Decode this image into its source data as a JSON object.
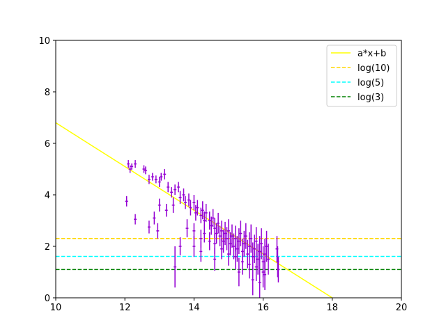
{
  "chart_data": {
    "type": "scatter",
    "title": "",
    "xlabel": "",
    "ylabel": "",
    "xlim": [
      10,
      20
    ],
    "ylim": [
      0,
      10
    ],
    "xticks": [
      "10",
      "12",
      "14",
      "16",
      "18",
      "20"
    ],
    "yticks": [
      "0",
      "2",
      "4",
      "6",
      "8",
      "10"
    ],
    "grid": false,
    "legend_position": "top-right",
    "fit_line": {
      "label": "a*x+b",
      "slope": -0.85,
      "intercept": 15.3,
      "x_range": [
        10,
        18.0
      ],
      "color": "#ffff00"
    },
    "hlines": [
      {
        "label": "log(10)",
        "y": 2.303,
        "color": "#ffd700"
      },
      {
        "label": "log(5)",
        "y": 1.609,
        "color": "#00ffff"
      },
      {
        "label": "log(3)",
        "y": 1.099,
        "color": "#008000"
      }
    ],
    "points_color": "#9400d3",
    "points": [
      [
        12.1,
        5.2,
        0.15,
        0.04
      ],
      [
        12.15,
        5.0,
        0.15,
        0.04
      ],
      [
        12.2,
        5.1,
        0.12,
        0.04
      ],
      [
        12.3,
        5.2,
        0.15,
        0.04
      ],
      [
        12.55,
        5.0,
        0.15,
        0.04
      ],
      [
        12.6,
        4.95,
        0.15,
        0.04
      ],
      [
        12.7,
        4.6,
        0.18,
        0.04
      ],
      [
        12.8,
        4.7,
        0.15,
        0.04
      ],
      [
        12.9,
        4.6,
        0.15,
        0.04
      ],
      [
        13.0,
        4.5,
        0.2,
        0.04
      ],
      [
        13.05,
        4.7,
        0.15,
        0.04
      ],
      [
        13.15,
        4.8,
        0.2,
        0.04
      ],
      [
        13.25,
        4.3,
        0.2,
        0.04
      ],
      [
        13.35,
        4.1,
        0.2,
        0.04
      ],
      [
        13.45,
        4.2,
        0.2,
        0.04
      ],
      [
        13.55,
        4.3,
        0.2,
        0.04
      ],
      [
        13.6,
        3.9,
        0.25,
        0.04
      ],
      [
        13.7,
        4.0,
        0.25,
        0.04
      ],
      [
        13.75,
        3.7,
        0.25,
        0.04
      ],
      [
        13.85,
        3.8,
        0.25,
        0.04
      ],
      [
        13.9,
        3.5,
        0.3,
        0.04
      ],
      [
        14.0,
        3.7,
        0.3,
        0.04
      ],
      [
        14.05,
        3.3,
        0.3,
        0.04
      ],
      [
        14.1,
        3.5,
        0.3,
        0.04
      ],
      [
        14.2,
        3.2,
        0.3,
        0.04
      ],
      [
        14.25,
        3.4,
        0.35,
        0.04
      ],
      [
        14.3,
        3.0,
        0.35,
        0.04
      ],
      [
        14.35,
        3.3,
        0.35,
        0.04
      ],
      [
        14.45,
        3.0,
        0.35,
        0.04
      ],
      [
        14.5,
        2.8,
        0.35,
        0.04
      ],
      [
        14.55,
        3.1,
        0.35,
        0.04
      ],
      [
        14.6,
        2.7,
        0.4,
        0.04
      ],
      [
        14.65,
        2.5,
        0.4,
        0.04
      ],
      [
        14.7,
        2.9,
        0.4,
        0.04
      ],
      [
        14.75,
        2.4,
        0.4,
        0.04
      ],
      [
        14.8,
        2.6,
        0.4,
        0.04
      ],
      [
        14.85,
        2.2,
        0.45,
        0.04
      ],
      [
        14.9,
        2.5,
        0.45,
        0.04
      ],
      [
        14.95,
        2.3,
        0.45,
        0.04
      ],
      [
        15.0,
        2.6,
        0.45,
        0.04
      ],
      [
        15.05,
        2.1,
        0.45,
        0.04
      ],
      [
        15.1,
        2.4,
        0.45,
        0.04
      ],
      [
        15.15,
        2.0,
        0.5,
        0.04
      ],
      [
        15.2,
        2.3,
        0.5,
        0.04
      ],
      [
        15.25,
        1.9,
        0.5,
        0.04
      ],
      [
        15.3,
        2.2,
        0.5,
        0.04
      ],
      [
        15.35,
        2.5,
        0.5,
        0.04
      ],
      [
        15.4,
        1.8,
        0.5,
        0.04
      ],
      [
        15.45,
        2.1,
        0.5,
        0.04
      ],
      [
        15.5,
        2.4,
        0.5,
        0.04
      ],
      [
        15.55,
        1.7,
        0.55,
        0.04
      ],
      [
        15.6,
        2.0,
        0.55,
        0.04
      ],
      [
        15.65,
        2.3,
        0.55,
        0.04
      ],
      [
        15.7,
        1.6,
        0.55,
        0.04
      ],
      [
        15.75,
        1.9,
        0.55,
        0.04
      ],
      [
        15.8,
        2.2,
        0.55,
        0.04
      ],
      [
        15.85,
        1.5,
        0.6,
        0.04
      ],
      [
        15.9,
        1.8,
        0.6,
        0.04
      ],
      [
        15.95,
        2.1,
        0.6,
        0.04
      ],
      [
        16.0,
        1.4,
        0.6,
        0.04
      ],
      [
        16.05,
        1.7,
        0.6,
        0.04
      ],
      [
        16.1,
        2.0,
        0.6,
        0.04
      ],
      [
        16.15,
        1.5,
        0.6,
        0.04
      ],
      [
        16.4,
        1.9,
        0.5,
        0.04
      ],
      [
        16.42,
        1.4,
        0.6,
        0.04
      ],
      [
        16.44,
        1.1,
        0.5,
        0.04
      ],
      [
        14.6,
        2.1,
        0.4,
        0.04
      ],
      [
        14.8,
        1.9,
        0.4,
        0.04
      ],
      [
        15.0,
        1.7,
        0.45,
        0.04
      ],
      [
        15.2,
        1.6,
        0.5,
        0.04
      ],
      [
        15.4,
        1.4,
        0.5,
        0.04
      ],
      [
        15.6,
        1.3,
        0.55,
        0.04
      ],
      [
        15.8,
        1.2,
        0.55,
        0.04
      ],
      [
        16.0,
        1.0,
        0.6,
        0.04
      ],
      [
        15.3,
        1.0,
        0.55,
        0.04
      ],
      [
        15.7,
        0.7,
        0.6,
        0.04
      ],
      [
        15.9,
        0.6,
        0.6,
        0.04
      ],
      [
        16.05,
        0.9,
        0.6,
        0.04
      ],
      [
        14.3,
        2.5,
        0.35,
        0.04
      ],
      [
        14.45,
        2.2,
        0.35,
        0.04
      ],
      [
        14.0,
        2.6,
        0.3,
        0.04
      ],
      [
        14.2,
        2.3,
        0.35,
        0.04
      ],
      [
        12.05,
        3.75,
        0.2,
        0.04
      ],
      [
        12.3,
        3.05,
        0.2,
        0.04
      ],
      [
        12.7,
        2.75,
        0.25,
        0.04
      ],
      [
        12.85,
        3.1,
        0.25,
        0.04
      ],
      [
        12.95,
        2.6,
        0.3,
        0.04
      ],
      [
        13.0,
        3.6,
        0.25,
        0.04
      ],
      [
        13.2,
        3.4,
        0.25,
        0.04
      ],
      [
        13.4,
        3.6,
        0.3,
        0.04
      ],
      [
        13.6,
        2.0,
        0.35,
        0.04
      ],
      [
        13.8,
        2.7,
        0.35,
        0.04
      ],
      [
        13.45,
        1.2,
        0.8,
        0.04
      ],
      [
        14.0,
        2.0,
        0.4,
        0.04
      ],
      [
        14.2,
        1.8,
        0.4,
        0.04
      ],
      [
        14.6,
        1.5,
        0.45,
        0.04
      ]
    ]
  }
}
